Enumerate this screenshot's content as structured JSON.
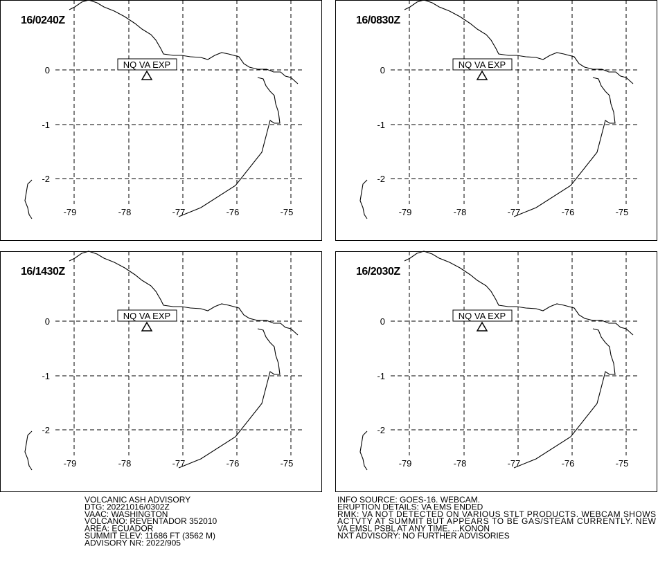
{
  "panels": [
    {
      "time": "16/0240Z",
      "label": "NQ VA EXP"
    },
    {
      "time": "16/0830Z",
      "label": "NQ VA EXP"
    },
    {
      "time": "16/1430Z",
      "label": "NQ VA EXP"
    },
    {
      "time": "16/2030Z",
      "label": "NQ VA EXP"
    }
  ],
  "lat_labels": [
    "0",
    "-1",
    "-2"
  ],
  "lon_labels": [
    "-79",
    "-78",
    "-77",
    "-76",
    "-75"
  ],
  "advisory_left": [
    "VOLCANIC ASH ADVISORY",
    "DTG: 20221016/0302Z",
    "VAAC: WASHINGTON",
    "VOLCANO: REVENTADOR 352010",
    "AREA: ECUADOR",
    "SUMMIT ELEV: 11686 FT (3562 M)",
    "ADVISORY NR: 2022/905"
  ],
  "advisory_right": [
    "INFO SOURCE: GOES-16. WEBCAM.",
    "ERUPTION DETAILS: VA EMS ENDED",
    "RMK: VA NOT DETECTED ON VARIOUS STLT PRODUCTS. WEBCAM SHOWS",
    "ACTVTY AT SUMMIT BUT APPEARS TO BE GAS/STEAM CURRENTLY. NEW",
    "VA EMSL PSBL AT ANY TIME. ...KONON",
    "NXT ADVISORY: NO FURTHER ADVISORIES"
  ]
}
